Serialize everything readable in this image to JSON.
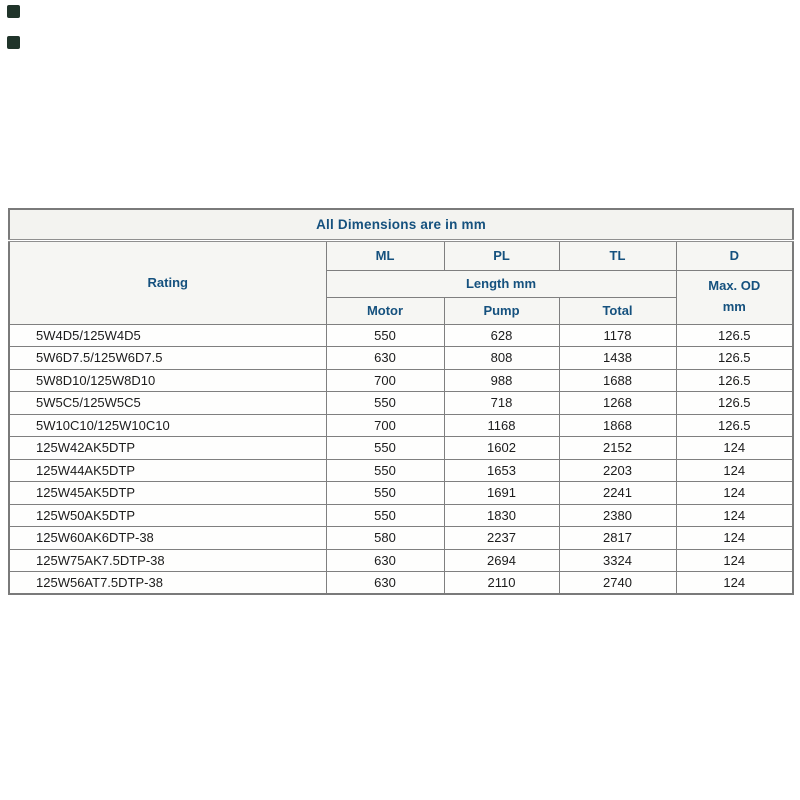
{
  "page": {
    "background_color": "#ffffff",
    "decor_square_color": "#20342a"
  },
  "table": {
    "title": "All Dimensions are in mm",
    "colors": {
      "header_text": "#15517e",
      "body_text": "#1c1c1c",
      "border": "#7f7f7f",
      "header_background": "#f5f5f2"
    },
    "header": {
      "rating": "Rating",
      "ml": "ML",
      "pl": "PL",
      "tl": "TL",
      "d": "D",
      "length_group": "Length mm",
      "max_od": "Max. OD\nmm",
      "motor": "Motor",
      "pump": "Pump",
      "total": "Total"
    },
    "rows": [
      {
        "rating": "5W4D5/125W4D5",
        "motor": "550",
        "pump": "628",
        "total": "1178",
        "max_od": "126.5"
      },
      {
        "rating": "5W6D7.5/125W6D7.5",
        "motor": "630",
        "pump": "808",
        "total": "1438",
        "max_od": "126.5"
      },
      {
        "rating": "5W8D10/125W8D10",
        "motor": "700",
        "pump": "988",
        "total": "1688",
        "max_od": "126.5"
      },
      {
        "rating": "5W5C5/125W5C5",
        "motor": "550",
        "pump": "718",
        "total": "1268",
        "max_od": "126.5"
      },
      {
        "rating": "5W10C10/125W10C10",
        "motor": "700",
        "pump": "1168",
        "total": "1868",
        "max_od": "126.5"
      },
      {
        "rating": "125W42AK5DTP",
        "motor": "550",
        "pump": "1602",
        "total": "2152",
        "max_od": "124"
      },
      {
        "rating": "125W44AK5DTP",
        "motor": "550",
        "pump": "1653",
        "total": "2203",
        "max_od": "124"
      },
      {
        "rating": "125W45AK5DTP",
        "motor": "550",
        "pump": "1691",
        "total": "2241",
        "max_od": "124"
      },
      {
        "rating": "125W50AK5DTP",
        "motor": "550",
        "pump": "1830",
        "total": "2380",
        "max_od": "124"
      },
      {
        "rating": "125W60AK6DTP-38",
        "motor": "580",
        "pump": "2237",
        "total": "2817",
        "max_od": "124"
      },
      {
        "rating": "125W75AK7.5DTP-38",
        "motor": "630",
        "pump": "2694",
        "total": "3324",
        "max_od": "124"
      },
      {
        "rating": "125W56AT7.5DTP-38",
        "motor": "630",
        "pump": "2110",
        "total": "2740",
        "max_od": "124"
      }
    ]
  }
}
